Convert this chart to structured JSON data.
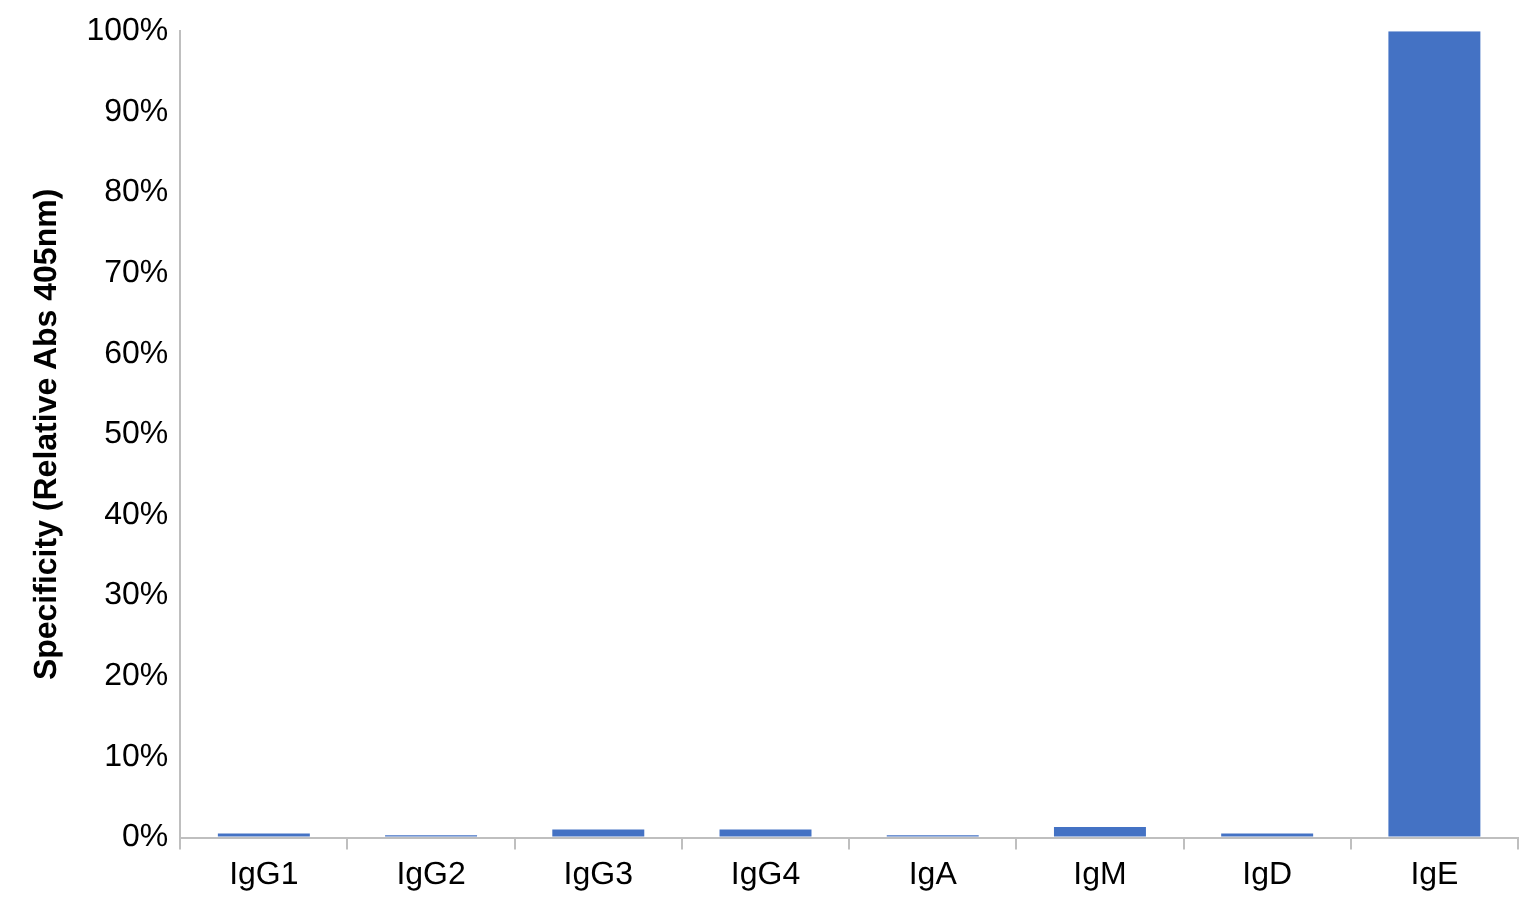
{
  "chart_data": {
    "type": "bar",
    "ylabel": "Specificity (Relative Abs 405nm)",
    "categories": [
      "IgG1",
      "IgG2",
      "IgG3",
      "IgG4",
      "IgA",
      "IgM",
      "IgD",
      "IgE"
    ],
    "values": [
      0.5,
      0.3,
      1,
      1,
      0.3,
      1.3,
      0.5,
      100
    ],
    "color": "#4472c4",
    "ylim": [
      0,
      100
    ],
    "yticks": [
      {
        "value": 0,
        "label": "0%"
      },
      {
        "value": 10,
        "label": "10%"
      },
      {
        "value": 20,
        "label": "20%"
      },
      {
        "value": 30,
        "label": "30%"
      },
      {
        "value": 40,
        "label": "40%"
      },
      {
        "value": 50,
        "label": "50%"
      },
      {
        "value": 60,
        "label": "60%"
      },
      {
        "value": 70,
        "label": "70%"
      },
      {
        "value": 80,
        "label": "80%"
      },
      {
        "value": 90,
        "label": "90%"
      },
      {
        "value": 100,
        "label": "100%"
      }
    ],
    "grid": false,
    "legend": false
  }
}
